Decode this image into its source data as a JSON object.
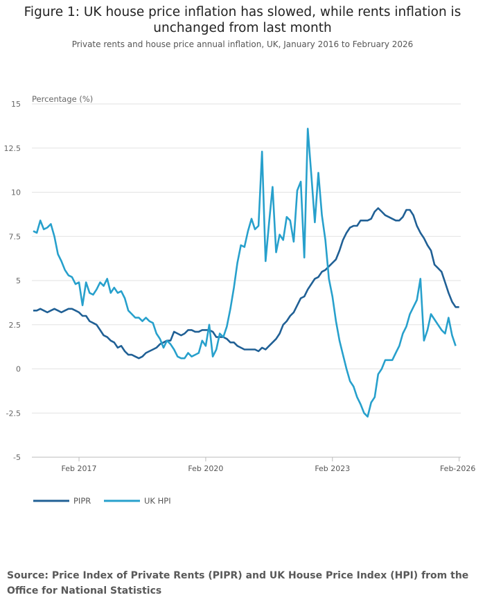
{
  "title": "Figure 1: UK house price inflation has slowed, while rents inflation is unchanged from last month",
  "subtitle": "Private rents and house price annual inflation, UK, January 2016 to February 2026",
  "source": "Source: Price Index of Private Rents (PIPR) and UK House Price Index (HPI) from the Office for National Statistics",
  "chart_data": {
    "type": "line",
    "ylabel": "Percentage (%)",
    "ylim": [
      -5,
      15
    ],
    "yticks": [
      15,
      12.5,
      10,
      7.5,
      5,
      2.5,
      0,
      -2.5,
      -5
    ],
    "ytick_labels": [
      "15",
      "12.5",
      "10",
      "7.5",
      "5",
      "2.5",
      "0",
      "-2.5",
      "-5"
    ],
    "x_start": "Jan 2016",
    "x_end": "Feb 2026",
    "xticks": [
      "Feb 2017",
      "Feb 2020",
      "Feb 2023",
      "Feb-2026"
    ],
    "grid": true,
    "legend_position": "bottom-left",
    "series": [
      {
        "name": "PIPR",
        "color": "#206095",
        "values": [
          3.3,
          3.3,
          3.4,
          3.3,
          3.2,
          3.3,
          3.4,
          3.3,
          3.2,
          3.3,
          3.4,
          3.4,
          3.3,
          3.2,
          3.0,
          3.0,
          2.7,
          2.6,
          2.5,
          2.2,
          1.9,
          1.8,
          1.6,
          1.5,
          1.2,
          1.3,
          1.0,
          0.8,
          0.8,
          0.7,
          0.6,
          0.7,
          0.9,
          1.0,
          1.1,
          1.2,
          1.4,
          1.5,
          1.6,
          1.6,
          2.1,
          2.0,
          1.9,
          2.0,
          2.2,
          2.2,
          2.1,
          2.1,
          2.2,
          2.2,
          2.2,
          2.1,
          1.8,
          1.8,
          1.8,
          1.7,
          1.5,
          1.5,
          1.3,
          1.2,
          1.1,
          1.1,
          1.1,
          1.1,
          1.0,
          1.2,
          1.1,
          1.3,
          1.5,
          1.7,
          2.0,
          2.5,
          2.7,
          3.0,
          3.2,
          3.6,
          4.0,
          4.1,
          4.5,
          4.8,
          5.1,
          5.2,
          5.5,
          5.6,
          5.8,
          6.0,
          6.2,
          6.7,
          7.3,
          7.7,
          8.0,
          8.1,
          8.1,
          8.4,
          8.4,
          8.4,
          8.5,
          8.9,
          9.1,
          8.9,
          8.7,
          8.6,
          8.5,
          8.4,
          8.4,
          8.6,
          9.0,
          9.0,
          8.7,
          8.1,
          7.7,
          7.4,
          7.0,
          6.7,
          5.9,
          5.7,
          5.5,
          4.9,
          4.3,
          3.8,
          3.5,
          3.5
        ]
      },
      {
        "name": "UK HPI",
        "color": "#27a0cc",
        "values": [
          7.8,
          7.7,
          8.4,
          7.9,
          8.0,
          8.2,
          7.5,
          6.5,
          6.1,
          5.6,
          5.3,
          5.2,
          4.8,
          4.9,
          3.6,
          4.9,
          4.3,
          4.2,
          4.5,
          4.9,
          4.7,
          5.1,
          4.3,
          4.6,
          4.3,
          4.4,
          4.0,
          3.3,
          3.1,
          2.9,
          2.9,
          2.7,
          2.9,
          2.7,
          2.6,
          2.0,
          1.7,
          1.2,
          1.6,
          1.4,
          1.1,
          0.7,
          0.6,
          0.6,
          0.9,
          0.7,
          0.8,
          0.9,
          1.6,
          1.3,
          2.5,
          0.7,
          1.1,
          2.0,
          1.8,
          2.4,
          3.4,
          4.6,
          6.0,
          7.0,
          6.9,
          7.8,
          8.5,
          7.9,
          8.1,
          12.3,
          6.1,
          8.3,
          10.3,
          6.6,
          7.6,
          7.3,
          8.6,
          8.4,
          7.2,
          10.1,
          10.6,
          6.3,
          13.6,
          11.0,
          8.3,
          11.1,
          8.7,
          7.3,
          5.1,
          4.1,
          2.7,
          1.6,
          0.8,
          0.0,
          -0.7,
          -1.0,
          -1.6,
          -2.0,
          -2.5,
          -2.7,
          -1.9,
          -1.6,
          -0.3,
          0.0,
          0.5,
          0.5,
          0.5,
          0.9,
          1.3,
          2.0,
          2.4,
          3.1,
          3.5,
          3.9,
          5.1,
          1.6,
          2.2,
          3.1,
          2.8,
          2.5,
          2.2,
          2.0,
          2.9,
          1.9,
          1.3,
          null
        ]
      }
    ]
  }
}
